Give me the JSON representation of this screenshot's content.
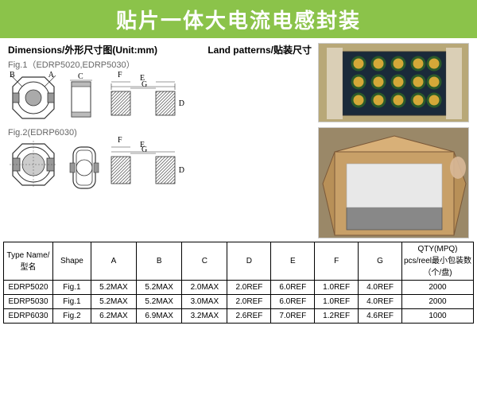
{
  "banner": {
    "title": "贴片一体大电流电感封装"
  },
  "headers": {
    "dimensions": "Dimensions/外形尺寸图(Unit:mm)",
    "land": "Land patterns/贴装尺寸"
  },
  "figures": {
    "fig1_label": "Fig.1（EDRP5020,EDRP5030）",
    "fig2_label": "Fig.2(EDRP6030)",
    "letters": {
      "A": "A",
      "B": "B",
      "C": "C",
      "D": "D",
      "E": "E",
      "F": "F",
      "G": "G"
    }
  },
  "table": {
    "columns": [
      "Type Name/\n型名",
      "Shape",
      "A",
      "B",
      "C",
      "D",
      "E",
      "F",
      "G",
      "QTY(MPQ)\npcs/reel最小包装数（个/盘)"
    ],
    "rows": [
      [
        "EDRP5020",
        "Fig.1",
        "5.2MAX",
        "5.2MAX",
        "2.0MAX",
        "2.0REF",
        "6.0REF",
        "1.0REF",
        "4.0REF",
        "2000"
      ],
      [
        "EDRP5030",
        "Fig.1",
        "5.2MAX",
        "5.2MAX",
        "3.0MAX",
        "2.0REF",
        "6.0REF",
        "1.0REF",
        "4.0REF",
        "2000"
      ],
      [
        "EDRP6030",
        "Fig.2",
        "6.2MAX",
        "6.9MAX",
        "3.2MAX",
        "2.6REF",
        "7.0REF",
        "1.2REF",
        "4.6REF",
        "1000"
      ]
    ]
  },
  "colors": {
    "banner_bg": "#8bc34a",
    "diagram_stroke": "#333333",
    "hatch_fill": "#888888"
  }
}
